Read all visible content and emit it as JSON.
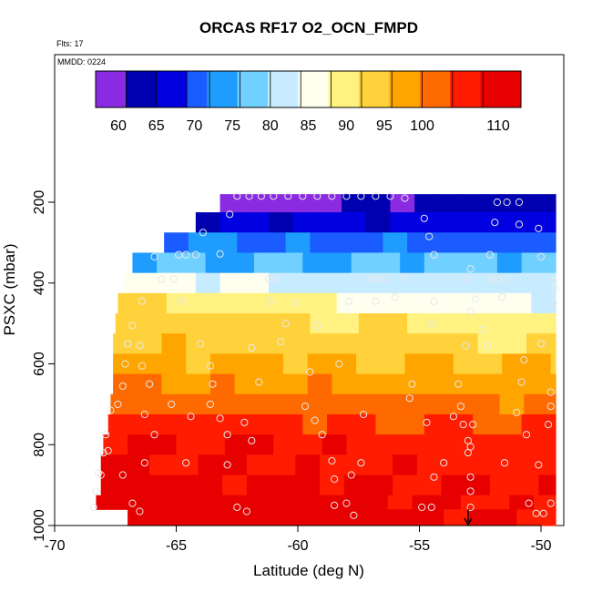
{
  "chart_data": {
    "type": "heatmap",
    "title": "ORCAS RF17 O2_OCN_FMPD",
    "annotations": {
      "flights": "Flts: 17",
      "date": "MMDD: 0224"
    },
    "xlabel": "Latitude (deg N)",
    "ylabel": "PSXC (mbar)",
    "xlim": [
      -70,
      -49
    ],
    "ylim": [
      1000,
      80
    ],
    "y_reversed": true,
    "grid": false,
    "x_ticks": [
      -70,
      -65,
      -60,
      -55,
      -50
    ],
    "x_tick_labels": [
      "-70",
      "-65",
      "-60",
      "-55",
      "-50"
    ],
    "y_ticks": [
      200,
      400,
      600,
      800,
      1000
    ],
    "y_tick_labels": [
      "200",
      "400",
      "600",
      "800",
      "1000"
    ],
    "colorbar": {
      "placement": "top",
      "min": 57,
      "max": 113,
      "tick_values": [
        60,
        65,
        70,
        75,
        80,
        85,
        90,
        95,
        100,
        110
      ],
      "tick_labels": [
        "60",
        "65",
        "70",
        "75",
        "80",
        "85",
        "90",
        "95",
        "100",
        "110"
      ],
      "boundaries": [
        57,
        61,
        65,
        69,
        72,
        76,
        80,
        84,
        88,
        92,
        96,
        100,
        104,
        108,
        113
      ],
      "colors": [
        "#8a2be2",
        "#0000b0",
        "#0000e0",
        "#1a5cff",
        "#1e9dff",
        "#70d0ff",
        "#c8ecff",
        "#fffff0",
        "#fff280",
        "#ffd23c",
        "#ffa500",
        "#ff6a00",
        "#ff1c00",
        "#e60000",
        "#b01010"
      ]
    },
    "bands": [
      {
        "p_top": 180,
        "p_bot": 225,
        "lat_start": -63.2,
        "lat_end": -49.4,
        "value_start": 59,
        "value_end": 64
      },
      {
        "p_top": 225,
        "p_bot": 275,
        "lat_start": -64.2,
        "lat_end": -49.4,
        "value_start": 65,
        "value_end": 67
      },
      {
        "p_top": 275,
        "p_bot": 325,
        "lat_start": -65.5,
        "lat_end": -49.4,
        "value_start": 72,
        "value_end": 70
      },
      {
        "p_top": 325,
        "p_bot": 375,
        "lat_start": -66.8,
        "lat_end": -49.4,
        "value_start": 76,
        "value_end": 77
      },
      {
        "p_top": 375,
        "p_bot": 425,
        "lat_start": -67.2,
        "lat_end": -49.4,
        "value_start": 86,
        "value_end": 80
      },
      {
        "p_top": 425,
        "p_bot": 475,
        "lat_start": -67.4,
        "lat_end": -49.4,
        "value_start": 93,
        "value_end": 84
      },
      {
        "p_top": 475,
        "p_bot": 525,
        "lat_start": -67.5,
        "lat_end": -49.4,
        "value_start": 95,
        "value_end": 89
      },
      {
        "p_top": 525,
        "p_bot": 575,
        "lat_start": -67.6,
        "lat_end": -49.4,
        "value_start": 96,
        "value_end": 92
      },
      {
        "p_top": 575,
        "p_bot": 625,
        "lat_start": -67.6,
        "lat_end": -49.4,
        "value_start": 97,
        "value_end": 96
      },
      {
        "p_top": 625,
        "p_bot": 675,
        "lat_start": -67.6,
        "lat_end": -49.4,
        "value_start": 100,
        "value_end": 98
      },
      {
        "p_top": 675,
        "p_bot": 725,
        "lat_start": -67.7,
        "lat_end": -49.4,
        "value_start": 102,
        "value_end": 101
      },
      {
        "p_top": 725,
        "p_bot": 775,
        "lat_start": -67.8,
        "lat_end": -49.4,
        "value_start": 106,
        "value_end": 104
      },
      {
        "p_top": 775,
        "p_bot": 825,
        "lat_start": -68.0,
        "lat_end": -49.4,
        "value_start": 109,
        "value_end": 106
      },
      {
        "p_top": 825,
        "p_bot": 875,
        "lat_start": -68.1,
        "lat_end": -49.4,
        "value_start": 109,
        "value_end": 106
      },
      {
        "p_top": 875,
        "p_bot": 925,
        "lat_start": -68.1,
        "lat_end": -49.4,
        "value_start": 110,
        "value_end": 107
      },
      {
        "p_top": 925,
        "p_bot": 960,
        "lat_start": -68.3,
        "lat_end": -49.4,
        "value_start": 111,
        "value_end": 107
      },
      {
        "p_top": 960,
        "p_bot": 1000,
        "lat_start": -67.0,
        "lat_end": -49.4,
        "value_start": 111,
        "value_end": 108
      }
    ],
    "observation_points": [
      {
        "lat": -62.5,
        "p": 185
      },
      {
        "lat": -62.0,
        "p": 185
      },
      {
        "lat": -61.5,
        "p": 185
      },
      {
        "lat": -61.0,
        "p": 185
      },
      {
        "lat": -60.4,
        "p": 185
      },
      {
        "lat": -59.8,
        "p": 185
      },
      {
        "lat": -59.2,
        "p": 185
      },
      {
        "lat": -58.6,
        "p": 185
      },
      {
        "lat": -58.0,
        "p": 185
      },
      {
        "lat": -57.4,
        "p": 185
      },
      {
        "lat": -56.8,
        "p": 185
      },
      {
        "lat": -56.2,
        "p": 185
      },
      {
        "lat": -55.6,
        "p": 190
      },
      {
        "lat": -51.8,
        "p": 200
      },
      {
        "lat": -51.4,
        "p": 200
      },
      {
        "lat": -50.9,
        "p": 200
      },
      {
        "lat": -62.8,
        "p": 230
      },
      {
        "lat": -54.8,
        "p": 240
      },
      {
        "lat": -51.9,
        "p": 250
      },
      {
        "lat": -50.9,
        "p": 255
      },
      {
        "lat": -50.1,
        "p": 265
      },
      {
        "lat": -63.9,
        "p": 275
      },
      {
        "lat": -54.6,
        "p": 285
      },
      {
        "lat": -50.0,
        "p": 335
      },
      {
        "lat": -65.9,
        "p": 335
      },
      {
        "lat": -64.9,
        "p": 330
      },
      {
        "lat": -64.6,
        "p": 330
      },
      {
        "lat": -64.2,
        "p": 330
      },
      {
        "lat": -63.2,
        "p": 328
      },
      {
        "lat": -54.4,
        "p": 330
      },
      {
        "lat": -52.1,
        "p": 330
      },
      {
        "lat": -65.6,
        "p": 390
      },
      {
        "lat": -65.1,
        "p": 390
      },
      {
        "lat": -61.2,
        "p": 390
      },
      {
        "lat": -60.9,
        "p": 390
      },
      {
        "lat": -57.0,
        "p": 390
      },
      {
        "lat": -56.7,
        "p": 390
      },
      {
        "lat": -56.4,
        "p": 390
      },
      {
        "lat": -55.6,
        "p": 388
      },
      {
        "lat": -53.1,
        "p": 390
      },
      {
        "lat": -52.1,
        "p": 390
      },
      {
        "lat": -51.8,
        "p": 390
      },
      {
        "lat": -51.5,
        "p": 390
      },
      {
        "lat": -52.9,
        "p": 365
      },
      {
        "lat": -49.4,
        "p": 415
      },
      {
        "lat": -49.5,
        "p": 395
      },
      {
        "lat": -66.4,
        "p": 445
      },
      {
        "lat": -64.8,
        "p": 445
      },
      {
        "lat": -61.1,
        "p": 445
      },
      {
        "lat": -60.1,
        "p": 450
      },
      {
        "lat": -57.9,
        "p": 445
      },
      {
        "lat": -56.8,
        "p": 445
      },
      {
        "lat": -56.0,
        "p": 435
      },
      {
        "lat": -54.4,
        "p": 445
      },
      {
        "lat": -52.7,
        "p": 440
      },
      {
        "lat": -51.6,
        "p": 435
      },
      {
        "lat": -49.5,
        "p": 450
      },
      {
        "lat": -52.9,
        "p": 470
      },
      {
        "lat": -66.8,
        "p": 505
      },
      {
        "lat": -60.5,
        "p": 500
      },
      {
        "lat": -59.2,
        "p": 505
      },
      {
        "lat": -54.5,
        "p": 500
      },
      {
        "lat": -52.4,
        "p": 515
      },
      {
        "lat": -67.0,
        "p": 550
      },
      {
        "lat": -66.5,
        "p": 555
      },
      {
        "lat": -64.0,
        "p": 550
      },
      {
        "lat": -61.9,
        "p": 560
      },
      {
        "lat": -60.7,
        "p": 545
      },
      {
        "lat": -53.1,
        "p": 555
      },
      {
        "lat": -52.2,
        "p": 555
      },
      {
        "lat": -50.0,
        "p": 550
      },
      {
        "lat": -67.1,
        "p": 600
      },
      {
        "lat": -66.4,
        "p": 605
      },
      {
        "lat": -63.6,
        "p": 605
      },
      {
        "lat": -58.3,
        "p": 600
      },
      {
        "lat": -50.7,
        "p": 590
      },
      {
        "lat": -67.2,
        "p": 655
      },
      {
        "lat": -66.1,
        "p": 650
      },
      {
        "lat": -63.5,
        "p": 650
      },
      {
        "lat": -61.6,
        "p": 645
      },
      {
        "lat": -59.5,
        "p": 620
      },
      {
        "lat": -55.3,
        "p": 650
      },
      {
        "lat": -53.4,
        "p": 650
      },
      {
        "lat": -50.8,
        "p": 645
      },
      {
        "lat": -49.6,
        "p": 670
      },
      {
        "lat": -67.4,
        "p": 700
      },
      {
        "lat": -65.2,
        "p": 700
      },
      {
        "lat": -63.6,
        "p": 700
      },
      {
        "lat": -59.7,
        "p": 705
      },
      {
        "lat": -55.4,
        "p": 685
      },
      {
        "lat": -53.3,
        "p": 705
      },
      {
        "lat": -51.0,
        "p": 720
      },
      {
        "lat": -49.6,
        "p": 705
      },
      {
        "lat": -67.7,
        "p": 715
      },
      {
        "lat": -66.3,
        "p": 725
      },
      {
        "lat": -64.4,
        "p": 730
      },
      {
        "lat": -63.2,
        "p": 735
      },
      {
        "lat": -62.2,
        "p": 745
      },
      {
        "lat": -59.3,
        "p": 740
      },
      {
        "lat": -57.3,
        "p": 725
      },
      {
        "lat": -53.6,
        "p": 730
      },
      {
        "lat": -67.9,
        "p": 775
      },
      {
        "lat": -65.9,
        "p": 775
      },
      {
        "lat": -62.9,
        "p": 775
      },
      {
        "lat": -59.0,
        "p": 775
      },
      {
        "lat": -54.7,
        "p": 745
      },
      {
        "lat": -53.2,
        "p": 750
      },
      {
        "lat": -52.8,
        "p": 750
      },
      {
        "lat": -50.6,
        "p": 775
      },
      {
        "lat": -49.7,
        "p": 750
      },
      {
        "lat": -68.0,
        "p": 820
      },
      {
        "lat": -67.8,
        "p": 815
      },
      {
        "lat": -61.9,
        "p": 790
      },
      {
        "lat": -53.0,
        "p": 790
      },
      {
        "lat": -52.9,
        "p": 805
      },
      {
        "lat": -68.2,
        "p": 870
      },
      {
        "lat": -68.1,
        "p": 875
      },
      {
        "lat": -67.2,
        "p": 875
      },
      {
        "lat": -66.3,
        "p": 845
      },
      {
        "lat": -64.6,
        "p": 845
      },
      {
        "lat": -62.9,
        "p": 850
      },
      {
        "lat": -58.6,
        "p": 840
      },
      {
        "lat": -57.4,
        "p": 845
      },
      {
        "lat": -54.0,
        "p": 845
      },
      {
        "lat": -53.0,
        "p": 820
      },
      {
        "lat": -51.5,
        "p": 845
      },
      {
        "lat": -50.1,
        "p": 850
      },
      {
        "lat": -68.3,
        "p": 915
      },
      {
        "lat": -58.5,
        "p": 885
      },
      {
        "lat": -57.8,
        "p": 875
      },
      {
        "lat": -54.4,
        "p": 880
      },
      {
        "lat": -52.9,
        "p": 880
      },
      {
        "lat": -52.9,
        "p": 915
      },
      {
        "lat": -68.4,
        "p": 955
      },
      {
        "lat": -66.8,
        "p": 945
      },
      {
        "lat": -66.5,
        "p": 965
      },
      {
        "lat": -62.5,
        "p": 955
      },
      {
        "lat": -62.1,
        "p": 965
      },
      {
        "lat": -58.5,
        "p": 950
      },
      {
        "lat": -58.0,
        "p": 945
      },
      {
        "lat": -57.7,
        "p": 975
      },
      {
        "lat": -54.9,
        "p": 955
      },
      {
        "lat": -54.5,
        "p": 955
      },
      {
        "lat": -52.9,
        "p": 955
      },
      {
        "lat": -50.5,
        "p": 945
      },
      {
        "lat": -50.2,
        "p": 970
      },
      {
        "lat": -49.9,
        "p": 970
      },
      {
        "lat": -49.6,
        "p": 945
      }
    ],
    "arrow_marker": {
      "lat": -53.0,
      "p_from": 960,
      "p_to": 1000
    }
  }
}
